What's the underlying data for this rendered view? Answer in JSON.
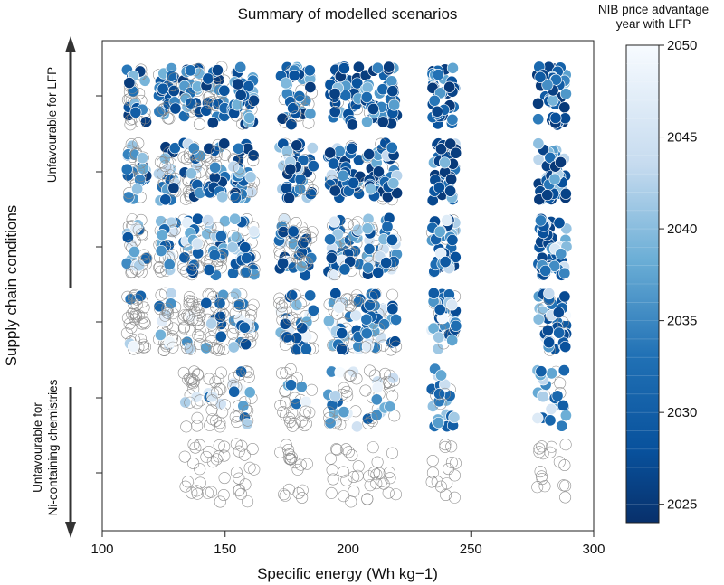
{
  "chart_data": {
    "type": "scatter",
    "title": "Summary of modelled scenarios",
    "xlabel": "Specific energy (Wh kg−1)",
    "ylabel": "Supply chain conditions",
    "xlim": [
      100,
      300
    ],
    "xticks": [
      100,
      150,
      200,
      250,
      300
    ],
    "yticks": [],
    "y_arrow_top_label": "Unfavourable for LFP",
    "y_arrow_bottom_label_line1": "Unfavourable for",
    "y_arrow_bottom_label_line2": "Ni-containing chemistries",
    "colorbar": {
      "title_line1": "NIB price advantage",
      "title_line2": "year with LFP",
      "min": 2024,
      "max": 2050,
      "ticks": [
        2025,
        2030,
        2035,
        2040,
        2045,
        2050
      ],
      "colormap": "Blues",
      "color_low": "#08306b",
      "color_high": "#f7fbff"
    },
    "no_advantage_marker": "hollow-grey-circle",
    "scenario_rows": [
      {
        "row": 1,
        "x_clusters": [
          [
            110,
            118
          ],
          [
            123,
            130
          ],
          [
            133,
            140
          ],
          [
            142,
            150
          ],
          [
            153,
            162
          ],
          [
            172,
            186
          ],
          [
            192,
            205
          ],
          [
            207,
            220
          ],
          [
            234,
            244
          ],
          [
            277,
            289
          ]
        ],
        "year_range": [
          2025,
          2040
        ],
        "hollow_fraction": 0.25
      },
      {
        "row": 2,
        "x_clusters": [
          [
            110,
            118
          ],
          [
            123,
            130
          ],
          [
            133,
            140
          ],
          [
            142,
            150
          ],
          [
            153,
            162
          ],
          [
            172,
            186
          ],
          [
            192,
            205
          ],
          [
            207,
            220
          ],
          [
            234,
            244
          ],
          [
            277,
            289
          ]
        ],
        "year_range": [
          2025,
          2044
        ],
        "hollow_fraction": 0.3
      },
      {
        "row": 3,
        "x_clusters": [
          [
            110,
            118
          ],
          [
            123,
            130
          ],
          [
            133,
            140
          ],
          [
            142,
            150
          ],
          [
            153,
            162
          ],
          [
            172,
            186
          ],
          [
            192,
            205
          ],
          [
            207,
            220
          ],
          [
            234,
            244
          ],
          [
            277,
            289
          ]
        ],
        "year_range": [
          2026,
          2048
        ],
        "hollow_fraction": 0.4
      },
      {
        "row": 4,
        "x_clusters": [
          [
            110,
            118
          ],
          [
            123,
            130
          ],
          [
            133,
            140
          ],
          [
            142,
            150
          ],
          [
            153,
            162
          ],
          [
            172,
            186
          ],
          [
            192,
            205
          ],
          [
            207,
            220
          ],
          [
            234,
            244
          ],
          [
            277,
            289
          ]
        ],
        "year_range": [
          2027,
          2050
        ],
        "hollow_fraction": 0.55
      },
      {
        "row": 5,
        "x_clusters": [
          [
            133,
            140
          ],
          [
            142,
            150
          ],
          [
            153,
            162
          ],
          [
            172,
            186
          ],
          [
            192,
            205
          ],
          [
            207,
            220
          ],
          [
            234,
            244
          ],
          [
            277,
            289
          ]
        ],
        "year_range": [
          2030,
          2050
        ],
        "hollow_fraction": 0.7
      },
      {
        "row": 6,
        "x_clusters": [
          [
            133,
            140
          ],
          [
            142,
            150
          ],
          [
            153,
            162
          ],
          [
            172,
            186
          ],
          [
            192,
            205
          ],
          [
            207,
            220
          ],
          [
            234,
            244
          ],
          [
            277,
            289
          ]
        ],
        "year_range": [
          2050,
          2050
        ],
        "hollow_fraction": 1.0
      }
    ]
  }
}
